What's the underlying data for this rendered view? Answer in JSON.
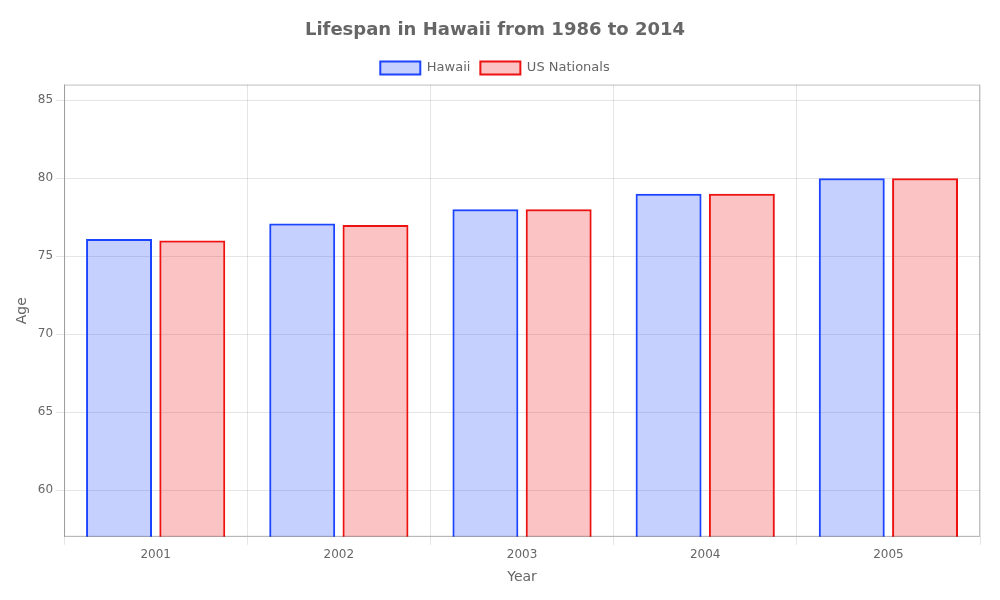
{
  "chart_data": {
    "type": "bar",
    "title": "Lifespan in Hawaii from 1986 to 2014",
    "x_label": "Year",
    "y_label": "Age",
    "categories": [
      "2001",
      "2002",
      "2003",
      "2004",
      "2005"
    ],
    "series": [
      {
        "name": "Hawaii",
        "color": "#1a44ff",
        "values": [
          76.1,
          77.1,
          78.0,
          79.0,
          80.0
        ]
      },
      {
        "name": "US Nationals",
        "color": "#ee1111",
        "values": [
          76.0,
          77.0,
          78.0,
          79.0,
          80.0
        ]
      }
    ],
    "ylim": [
      57,
      86
    ],
    "yticks": [
      60,
      65,
      70,
      75,
      80,
      85
    ],
    "grid": true,
    "legend": "top"
  }
}
